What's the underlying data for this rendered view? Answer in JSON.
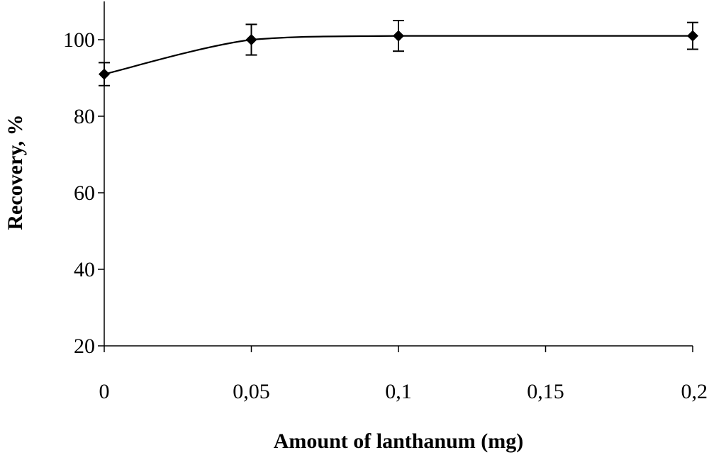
{
  "chart_data": {
    "type": "line",
    "xlabel": "Amount of lanthanum (mg)",
    "ylabel": "Recovery, %",
    "xlim": [
      0,
      0.2
    ],
    "ylim": [
      20,
      110
    ],
    "x_ticks": [
      0,
      0.05,
      0.1,
      0.15,
      0.2
    ],
    "x_tick_labels": [
      "0",
      "0,05",
      "0,1",
      "0,15",
      "0,2"
    ],
    "y_ticks": [
      20,
      40,
      60,
      80,
      100
    ],
    "y_tick_labels": [
      "20",
      "40",
      "60",
      "80",
      "100"
    ],
    "grid": false,
    "legend": "none",
    "marker": "diamond",
    "line_style": "smoothed",
    "series": [
      {
        "x": [
          0,
          0.05,
          0.1,
          0.2
        ],
        "y": [
          91,
          100,
          101,
          101
        ],
        "error": [
          3,
          4,
          4,
          3.5
        ],
        "color": "#000000"
      }
    ]
  }
}
